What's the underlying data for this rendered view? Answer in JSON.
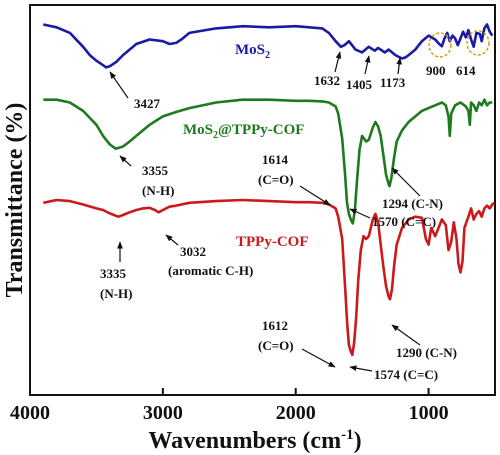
{
  "chart_data": {
    "type": "line",
    "xlabel": "Wavenumbers (cm",
    "xlabel_sup": "-1",
    "xlabel_end": ")",
    "ylabel": "Transmittance (%)",
    "xlim": [
      4000,
      500
    ],
    "x_ticks": [
      "4000",
      "3000",
      "2000",
      "1000"
    ],
    "x_tick_values": [
      4000,
      3000,
      2000,
      1000
    ],
    "series": [
      {
        "name": "MoS",
        "name_sub": "2",
        "color": "#1a1aa6",
        "x": [
          3900,
          3800,
          3700,
          3600,
          3550,
          3500,
          3450,
          3427,
          3400,
          3350,
          3300,
          3200,
          3100,
          3000,
          2950,
          2900,
          2850,
          2800,
          2600,
          2400,
          2200,
          2000,
          1900,
          1800,
          1750,
          1700,
          1660,
          1632,
          1600,
          1550,
          1500,
          1450,
          1405,
          1380,
          1330,
          1300,
          1250,
          1200,
          1173,
          1150,
          1100,
          1050,
          1000,
          950,
          920,
          900,
          880,
          860,
          840,
          820,
          800,
          780,
          760,
          740,
          720,
          700,
          680,
          660,
          640,
          614,
          600,
          580,
          560,
          540,
          520
        ],
        "y": [
          96.5,
          96.0,
          95.0,
          92.5,
          91.0,
          90.0,
          89.2,
          88.8,
          89.0,
          89.8,
          91.0,
          93.0,
          93.8,
          93.5,
          93.0,
          93.2,
          94.0,
          95.0,
          95.8,
          96.2,
          96.0,
          96.2,
          96.0,
          95.8,
          95.0,
          93.5,
          92.5,
          92.8,
          93.5,
          92.0,
          91.5,
          92.5,
          91.8,
          92.3,
          91.5,
          92.0,
          91.0,
          90.4,
          90.6,
          91.0,
          92.0,
          93.5,
          94.5,
          93.8,
          93.0,
          92.6,
          94.0,
          95.0,
          93.5,
          94.5,
          94.0,
          92.8,
          94.0,
          95.2,
          94.2,
          95.5,
          93.8,
          92.5,
          95.0,
          94.8,
          93.5,
          95.8,
          96.5,
          95.2,
          94.5
        ]
      },
      {
        "name": "MoS",
        "name_sub": "2",
        "name_end": "@TPPy-COF",
        "color": "#1e7a1e",
        "x": [
          3900,
          3800,
          3700,
          3600,
          3500,
          3450,
          3400,
          3355,
          3300,
          3250,
          3200,
          3100,
          3000,
          2900,
          2800,
          2600,
          2400,
          2200,
          2000,
          1900,
          1800,
          1750,
          1700,
          1680,
          1650,
          1630,
          1614,
          1600,
          1585,
          1570,
          1555,
          1540,
          1520,
          1500,
          1470,
          1450,
          1420,
          1400,
          1380,
          1360,
          1340,
          1320,
          1300,
          1294,
          1280,
          1260,
          1240,
          1200,
          1150,
          1100,
          1050,
          1000,
          950,
          900,
          870,
          850,
          840,
          830,
          800,
          760,
          720,
          700,
          690,
          680,
          660,
          640,
          620,
          600,
          580,
          560,
          540,
          520
        ],
        "y": [
          83.0,
          83.0,
          82.5,
          81.0,
          78.5,
          76.5,
          75.0,
          74.2,
          74.6,
          75.5,
          76.5,
          78.5,
          80.0,
          80.8,
          81.5,
          82.5,
          83.0,
          83.0,
          82.8,
          82.8,
          82.7,
          82.5,
          81.8,
          80.5,
          76.0,
          70.0,
          64.5,
          62.5,
          61.5,
          60.8,
          63.0,
          68.0,
          74.0,
          76.5,
          75.5,
          75.8,
          78.0,
          79.0,
          78.2,
          76.5,
          73.0,
          69.5,
          67.8,
          67.5,
          69.0,
          72.5,
          75.5,
          77.5,
          79.0,
          80.0,
          81.0,
          81.5,
          82.0,
          82.5,
          82.0,
          80.0,
          76.5,
          80.5,
          82.0,
          82.5,
          81.8,
          81.0,
          78.5,
          82.5,
          82.0,
          81.0,
          82.5,
          82.0,
          83.0,
          82.0,
          82.5,
          82.5
        ]
      },
      {
        "name": "TPPy-COF",
        "color": "#cc1a1a",
        "x": [
          3900,
          3800,
          3700,
          3600,
          3500,
          3450,
          3400,
          3335,
          3300,
          3250,
          3200,
          3150,
          3100,
          3060,
          3032,
          3000,
          2950,
          2900,
          2800,
          2600,
          2400,
          2200,
          2000,
          1900,
          1800,
          1750,
          1700,
          1680,
          1650,
          1630,
          1612,
          1600,
          1585,
          1574,
          1560,
          1545,
          1530,
          1510,
          1490,
          1470,
          1450,
          1420,
          1400,
          1380,
          1360,
          1340,
          1320,
          1300,
          1290,
          1275,
          1260,
          1240,
          1200,
          1150,
          1100,
          1050,
          1020,
          1000,
          980,
          950,
          900,
          870,
          850,
          830,
          810,
          790,
          775,
          760,
          745,
          730,
          700,
          680,
          660,
          640,
          620,
          600,
          580,
          560,
          540,
          520,
          505
        ],
        "y": [
          64.5,
          65.0,
          64.8,
          64.2,
          63.5,
          63.2,
          62.6,
          62.0,
          62.3,
          62.8,
          63.2,
          63.5,
          63.6,
          63.2,
          62.8,
          63.2,
          63.8,
          64.0,
          64.5,
          64.8,
          65.0,
          64.8,
          64.6,
          64.6,
          64.5,
          64.2,
          63.5,
          62.0,
          58.0,
          50.0,
          42.5,
          39.0,
          37.8,
          37.2,
          39.5,
          44.0,
          50.5,
          56.0,
          58.5,
          58.0,
          58.5,
          61.5,
          62.5,
          61.0,
          57.0,
          53.0,
          49.5,
          47.6,
          47.2,
          49.0,
          53.0,
          57.0,
          60.0,
          61.5,
          62.0,
          61.8,
          58.0,
          57.0,
          60.0,
          58.5,
          61.5,
          60.5,
          56.0,
          57.5,
          61.0,
          58.0,
          53.5,
          52.0,
          54.0,
          60.0,
          62.0,
          63.5,
          61.5,
          62.5,
          63.0,
          62.0,
          63.5,
          64.0,
          63.5,
          64.2,
          64.5
        ]
      }
    ],
    "annotations": [
      {
        "text": "3427"
      },
      {
        "text": "1632"
      },
      {
        "text": "1405"
      },
      {
        "text": "1173"
      },
      {
        "text": "900"
      },
      {
        "text": "614"
      },
      {
        "text": "3355"
      },
      {
        "text": "(N-H)"
      },
      {
        "text": "1614"
      },
      {
        "text": "(C=O)"
      },
      {
        "text": "1294 (C-N)"
      },
      {
        "text": "1570 (C=C)"
      },
      {
        "text": "3335"
      },
      {
        "text": "(N-H)"
      },
      {
        "text": "3032"
      },
      {
        "text": "(aromatic C-H)"
      },
      {
        "text": "1612"
      },
      {
        "text": "(C=O)"
      },
      {
        "text": "1290 (C-N)"
      },
      {
        "text": "1574 (C=C)"
      }
    ]
  }
}
